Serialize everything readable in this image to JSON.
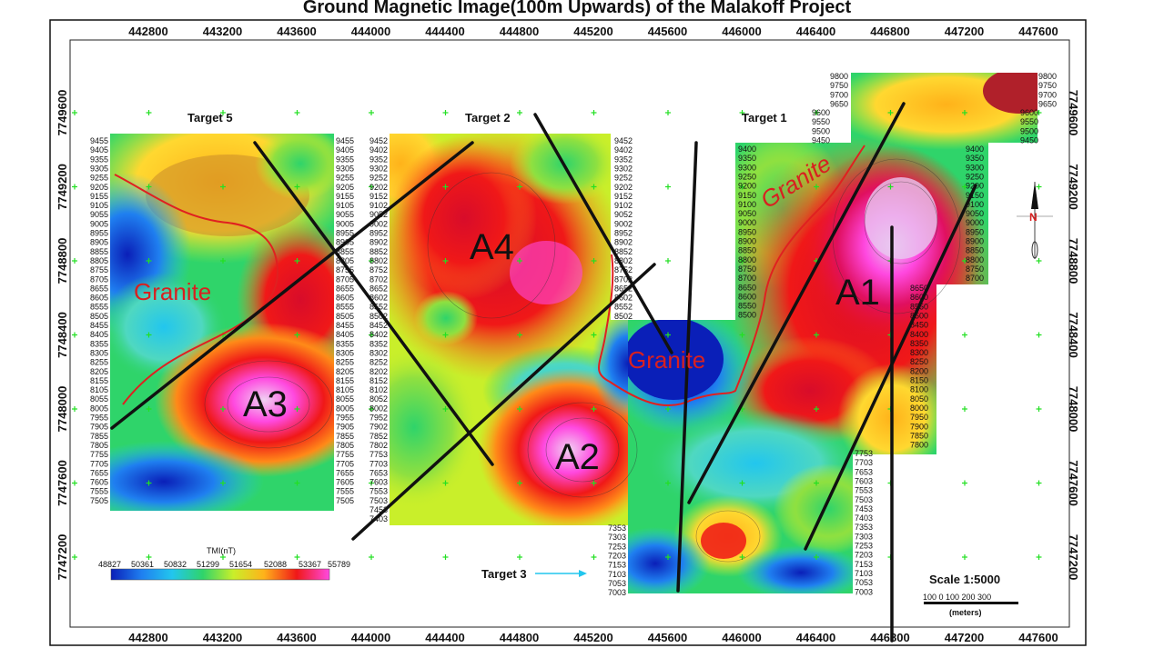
{
  "title": "Ground Magnetic Image(100m Upwards) of the Malakoff  Project",
  "x_ticks": [
    "442800",
    "443200",
    "443600",
    "444000",
    "444400",
    "444800",
    "445200",
    "445600",
    "446000",
    "446400",
    "446800",
    "447200",
    "447600"
  ],
  "y_ticks": [
    "7749600",
    "7749200",
    "7748800",
    "7748400",
    "7748000",
    "7747600",
    "7747200"
  ],
  "targets": {
    "t5": "Target  5",
    "t2": "Target  2",
    "t1": "Target  1",
    "t3": "Target 3"
  },
  "anomalies": {
    "a1": "A1",
    "a2": "A2",
    "a3": "A3",
    "a4": "A4"
  },
  "granite": {
    "g1": "Granite",
    "g2": "Granite",
    "g3": "Granite"
  },
  "legend": {
    "title": "TMI(nT)",
    "values": [
      "48827",
      "50361",
      "50832",
      "51299",
      "51654",
      "52088",
      "53367",
      "55789"
    ],
    "colors": [
      "#0a1fb8",
      "#1f7ff0",
      "#22c6ee",
      "#2fd46a",
      "#c9ef2a",
      "#ffb21a",
      "#f01818",
      "#ff49e0"
    ]
  },
  "scale": {
    "label": "Scale 1:5000",
    "ticks": "100  0  100  200 300",
    "units": "(meters)"
  },
  "line_labels": {
    "t5_left": [
      "9455",
      "9405",
      "9355",
      "9305",
      "9255",
      "9205",
      "9155",
      "9105",
      "9055",
      "9005",
      "8955",
      "8905",
      "8855",
      "8805",
      "8755",
      "8705",
      "8655",
      "8605",
      "8555",
      "8505",
      "8455",
      "8405",
      "8355",
      "8305",
      "8255",
      "8205",
      "8155",
      "8105",
      "8055",
      "8005",
      "7955",
      "7905",
      "7855",
      "7805",
      "7755",
      "7705",
      "7655",
      "7605",
      "7555",
      "7505"
    ],
    "t2_left": [
      "9452",
      "9402",
      "9352",
      "9302",
      "9252",
      "9202",
      "9152",
      "9102",
      "9052",
      "9002",
      "8952",
      "8902",
      "8852",
      "8802",
      "8752",
      "8702",
      "8652",
      "8602",
      "8552",
      "8502",
      "8452",
      "8402",
      "8352",
      "8302",
      "8252",
      "8202",
      "8152",
      "8102",
      "8052",
      "8002",
      "7952",
      "7902",
      "7852",
      "7802",
      "7753",
      "7703",
      "7653",
      "7603",
      "7553",
      "7503",
      "7453",
      "7403"
    ],
    "t2_right": [
      "9452",
      "9402",
      "9352",
      "9302",
      "9252",
      "9202",
      "9152",
      "9102",
      "9052",
      "9002",
      "8952",
      "8902",
      "8852",
      "8802",
      "8752",
      "8702",
      "8652",
      "8602",
      "8552",
      "8502"
    ],
    "t1_top_left": [
      "9800",
      "9750",
      "9700",
      "9650"
    ],
    "t1_top_right": [
      "9800",
      "9750",
      "9700",
      "9650"
    ],
    "t1_mid_left": [
      "9600",
      "9550",
      "9500",
      "9450"
    ],
    "t1_mid_right": [
      "9600",
      "9550",
      "9500",
      "9450"
    ],
    "t1_left": [
      "9400",
      "9350",
      "9300",
      "9250",
      "9200",
      "9150",
      "9100",
      "9050",
      "9000",
      "8950",
      "8900",
      "8850",
      "8800",
      "8750",
      "8700",
      "8650",
      "8600",
      "8550",
      "8500"
    ],
    "t1_right_a": [
      "9400",
      "9350",
      "9300",
      "9250",
      "9200",
      "9150",
      "9100",
      "9050",
      "9000",
      "8950",
      "8900",
      "8850",
      "8800",
      "8750",
      "8700"
    ],
    "t1_right_b": [
      "8650",
      "8600",
      "8550",
      "8500",
      "8450",
      "8400",
      "8350",
      "8300",
      "8250",
      "8200",
      "8150",
      "8100",
      "8050",
      "8000",
      "7950",
      "7900",
      "7850",
      "7800"
    ],
    "t3_left": [
      "7353",
      "7303",
      "7253",
      "7203",
      "7153",
      "7103",
      "7053",
      "7003"
    ],
    "t3_right": [
      "7753",
      "7703",
      "7653",
      "7603",
      "7553",
      "7503",
      "7453",
      "7403",
      "7353",
      "7303",
      "7253",
      "7203",
      "7153",
      "7103",
      "7053",
      "7003"
    ]
  }
}
